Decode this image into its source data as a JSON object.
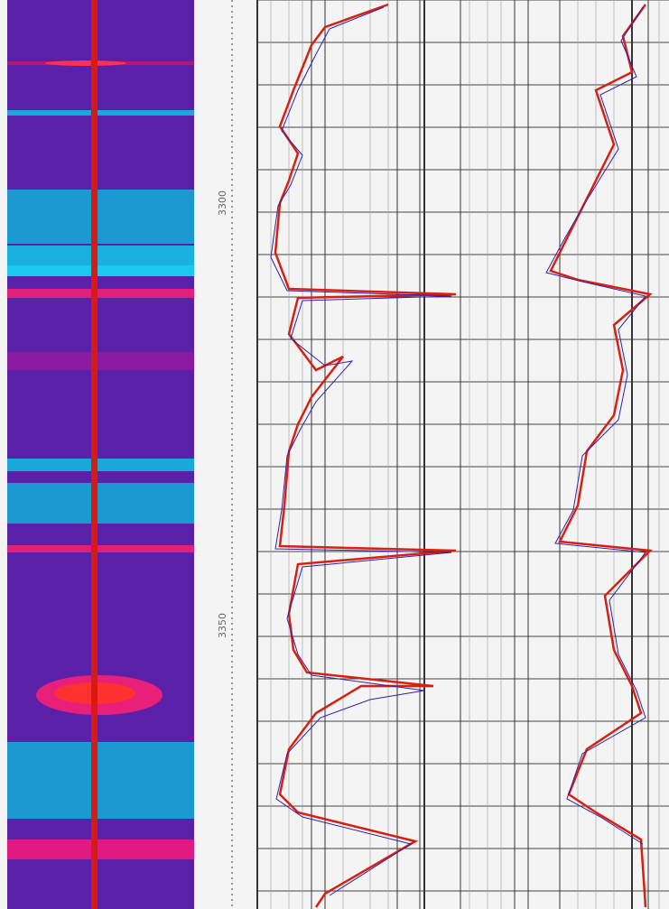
{
  "depth_labels": [
    "3300",
    "3350"
  ]
}
